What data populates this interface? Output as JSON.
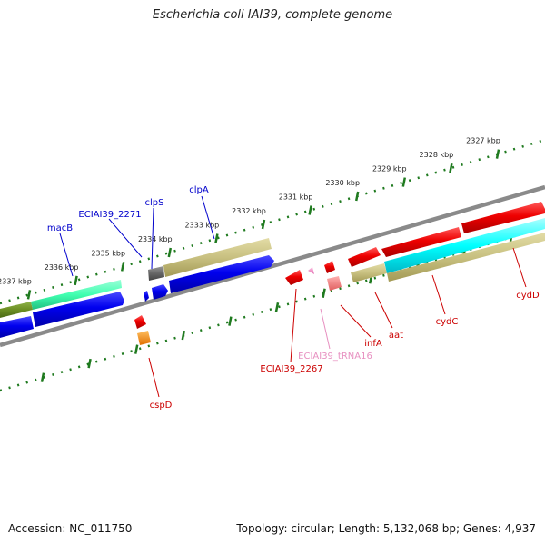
{
  "title": "Escherichia coli IAI39, complete genome",
  "footer": {
    "accession": "Accession: NC_011750",
    "stats": "Topology: circular; Length: 5,132,068 bp; Genes: 4,937"
  },
  "ticks": [
    "2327 kbp",
    "2328 kbp",
    "2329 kbp",
    "2330 kbp",
    "2331 kbp",
    "2332 kbp",
    "2333 kbp",
    "2334 kbp",
    "2335 kbp",
    "2336 kbp",
    "2337 kbp"
  ],
  "genes": {
    "top": [
      {
        "label": "macB",
        "color": "#0000cc"
      },
      {
        "label": "ECIAI39_2271",
        "color": "#0000cc"
      },
      {
        "label": "clpS",
        "color": "#0000cc"
      },
      {
        "label": "clpA",
        "color": "#0000cc"
      }
    ],
    "bottom": [
      {
        "label": "cspD",
        "color": "#cc0000"
      },
      {
        "label": "ECIAI39_2267",
        "color": "#cc0000"
      },
      {
        "label": "ECIAI39_tRNA16",
        "color": "#e78fc0"
      },
      {
        "label": "infA",
        "color": "#cc0000"
      },
      {
        "label": "aat",
        "color": "#cc0000"
      },
      {
        "label": "cydC",
        "color": "#cc0000"
      },
      {
        "label": "cydD",
        "color": "#cc0000"
      }
    ]
  },
  "colors": {
    "backbone": "#8a8a8a",
    "tick": "#1f7a1f",
    "forward_cds": "#0000ee",
    "reverse_cds": "#ee0000",
    "trna": "#ee82c8",
    "gene_bar": "#c8c080",
    "green_gene": "#6b8e23",
    "aqua_gene": "#40ffb0",
    "cyan_gene": "#00ffff",
    "gray_gene": "#666666",
    "orange_gene": "#ff8c00"
  }
}
